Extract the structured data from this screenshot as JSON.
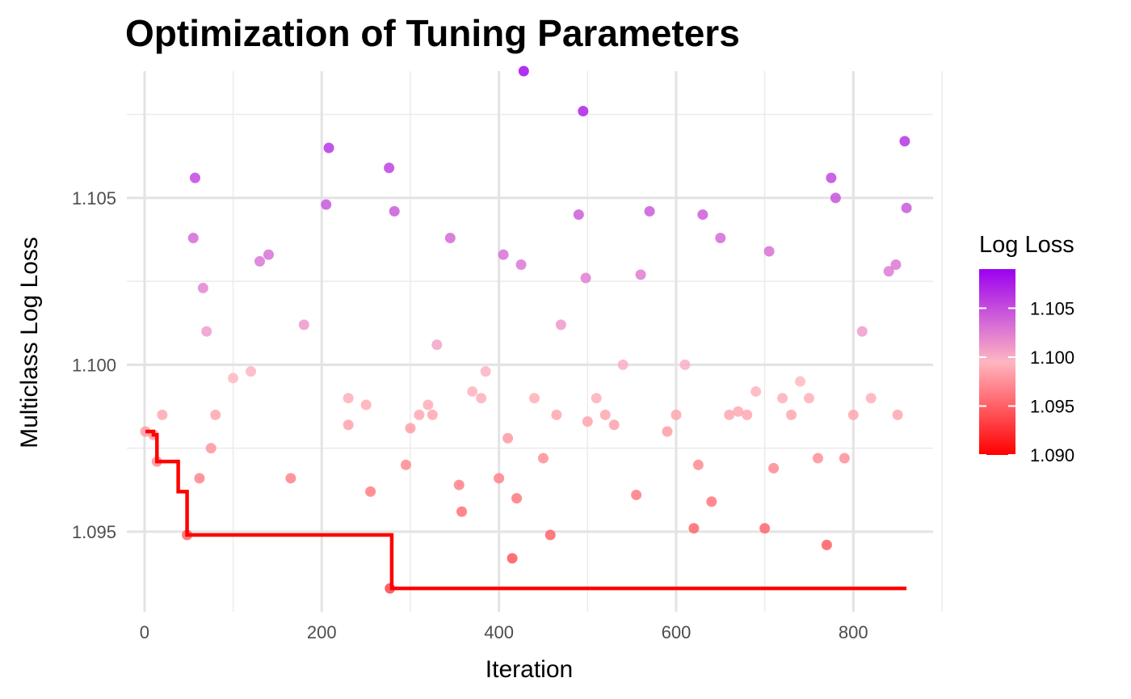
{
  "chart_data": {
    "type": "scatter",
    "title": "Optimization of Tuning Parameters",
    "xlabel": "Iteration",
    "ylabel": "Multiclass Log Loss",
    "xlim": [
      -20,
      890
    ],
    "ylim": [
      1.0926,
      1.1088
    ],
    "x_ticks": [
      0,
      200,
      400,
      600,
      800
    ],
    "x_tick_labels": [
      "0",
      "200",
      "400",
      "600",
      "800"
    ],
    "y_ticks": [
      1.095,
      1.1,
      1.105
    ],
    "y_tick_labels": [
      "1.095",
      "1.100",
      "1.105"
    ],
    "x_minor_ticks": [
      100,
      300,
      500,
      700,
      900
    ],
    "y_minor_ticks": [
      1.0975,
      1.1025,
      1.1075
    ],
    "grid": true,
    "legend": {
      "title": "Log Loss",
      "position": "right",
      "range": [
        1.09,
        1.109
      ],
      "ticks": [
        1.105,
        1.1,
        1.095,
        1.09
      ],
      "tick_labels": [
        "1.105",
        "1.100",
        "1.095",
        "1.090"
      ],
      "colors": {
        "low": "#ff0000",
        "mid": "#ffb6c1",
        "high": "#9b00f0",
        "out_of_range": "#808080"
      }
    },
    "best_so_far_line": {
      "color": "#ff0000",
      "x": [
        1,
        10,
        14,
        38,
        44,
        48,
        277,
        279,
        860
      ],
      "y": [
        1.098,
        1.0979,
        1.0971,
        1.0962,
        1.0962,
        1.0949,
        1.0949,
        1.0933,
        1.0933
      ]
    },
    "series": [
      {
        "x": [
          1,
          10,
          14,
          20,
          48,
          55,
          57,
          62,
          66,
          70,
          75,
          80,
          140,
          165,
          205,
          208,
          230,
          250,
          255,
          276,
          277,
          282,
          295,
          325,
          345,
          355,
          358,
          380,
          385,
          400,
          405,
          415,
          420,
          425,
          428,
          440,
          458,
          465,
          490,
          495,
          498,
          500,
          510,
          540,
          555,
          560,
          570,
          600,
          620,
          625,
          630,
          640,
          650,
          680,
          700,
          705,
          710,
          730,
          750,
          760,
          770,
          775,
          780,
          800,
          820,
          840,
          848,
          858,
          860,
          120,
          180,
          300,
          320,
          450,
          520,
          590,
          660,
          720,
          790,
          100,
          130,
          230,
          310,
          330,
          370,
          410,
          470,
          530,
          610,
          670,
          690,
          740,
          810,
          850
        ],
        "y": [
          1.098,
          1.0979,
          1.0971,
          1.0985,
          1.0949,
          1.1038,
          1.1056,
          1.0966,
          1.1023,
          1.101,
          1.0975,
          1.0985,
          1.1033,
          1.0966,
          1.1048,
          1.1065,
          1.099,
          1.0988,
          1.0962,
          1.1059,
          1.0933,
          1.1046,
          1.097,
          1.0985,
          1.1038,
          1.0964,
          1.0956,
          1.099,
          1.0998,
          1.0966,
          1.1033,
          1.0942,
          1.096,
          1.103,
          1.1088,
          1.099,
          1.0949,
          1.0985,
          1.1045,
          1.1076,
          1.1026,
          1.0983,
          1.099,
          1.1,
          1.0961,
          1.1027,
          1.1046,
          1.0985,
          1.0951,
          1.097,
          1.1045,
          1.0959,
          1.1038,
          1.0985,
          1.0951,
          1.1034,
          1.0969,
          1.0985,
          1.099,
          1.0972,
          1.0946,
          1.1056,
          1.105,
          1.0985,
          1.099,
          1.1028,
          1.103,
          1.1067,
          1.1047,
          1.0998,
          1.1012,
          1.0981,
          1.0988,
          1.0972,
          1.0985,
          1.098,
          1.0985,
          1.099,
          1.0972,
          1.0996,
          1.1031,
          1.0982,
          1.0985,
          1.1006,
          1.0992,
          1.0978,
          1.1012,
          1.0982,
          1.1,
          1.0986,
          1.0992,
          1.0995,
          1.101,
          1.0985
        ]
      }
    ]
  }
}
